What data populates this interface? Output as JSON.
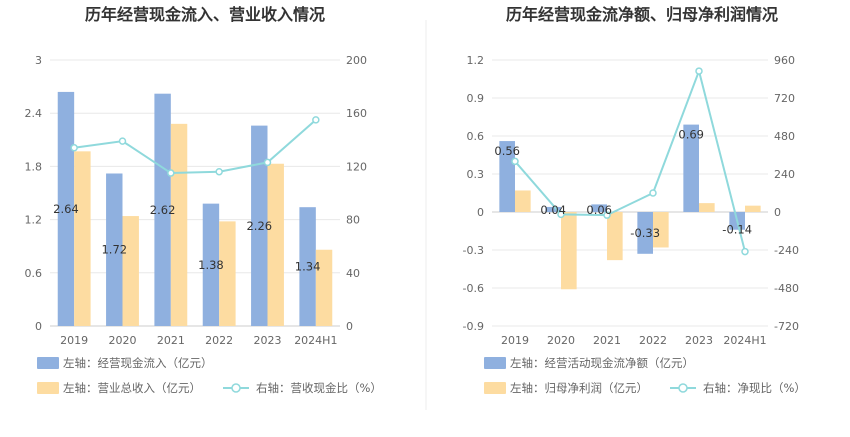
{
  "colors": {
    "bar_blue": "#8fb0df",
    "bar_orange": "#fddca1",
    "line_cyan": "#8fd9dc",
    "grid": "#e8e8e8",
    "axis": "#cccccc"
  },
  "chart_data": [
    {
      "type": "bar",
      "title": "历年经营现金流入、营业收入情况",
      "categories": [
        "2019",
        "2020",
        "2021",
        "2022",
        "2023",
        "2024H1"
      ],
      "left_axis": {
        "ylim": [
          0,
          3
        ],
        "ticks": [
          "0",
          "0.6",
          "1.2",
          "1.8",
          "2.4",
          "3"
        ]
      },
      "right_axis": {
        "ylim": [
          0,
          200
        ],
        "ticks": [
          "0",
          "40",
          "80",
          "120",
          "160",
          "200"
        ]
      },
      "series": [
        {
          "name": "左轴：经营现金流入（亿元）",
          "axis": "left",
          "kind": "bar",
          "values": [
            2.64,
            1.72,
            2.62,
            1.38,
            2.26,
            1.34
          ],
          "labels": [
            "2.64",
            "1.72",
            "2.62",
            "1.38",
            "2.26",
            "1.34"
          ]
        },
        {
          "name": "左轴：营业总收入（亿元）",
          "axis": "left",
          "kind": "bar",
          "values": [
            1.97,
            1.24,
            2.28,
            1.18,
            1.83,
            0.86
          ]
        },
        {
          "name": "右轴：营收现金比（%）",
          "axis": "right",
          "kind": "line",
          "values": [
            134,
            139,
            115,
            116,
            123,
            155
          ]
        }
      ]
    },
    {
      "type": "bar",
      "title": "历年经营现金流净额、归母净利润情况",
      "categories": [
        "2019",
        "2020",
        "2021",
        "2022",
        "2023",
        "2024H1"
      ],
      "left_axis": {
        "ylim": [
          -0.9,
          1.2
        ],
        "ticks": [
          "-0.9",
          "-0.6",
          "-0.3",
          "0",
          "0.3",
          "0.6",
          "0.9",
          "1.2"
        ]
      },
      "right_axis": {
        "ylim": [
          -720,
          960
        ],
        "ticks": [
          "-720",
          "-480",
          "-240",
          "0",
          "240",
          "480",
          "720",
          "960"
        ]
      },
      "series": [
        {
          "name": "左轴：经营活动现金流净额（亿元）",
          "axis": "left",
          "kind": "bar",
          "values": [
            0.56,
            0.04,
            0.06,
            -0.33,
            0.69,
            -0.14
          ],
          "labels": [
            "0.56",
            "0.04",
            "0.06",
            "-0.33",
            "0.69",
            "-0.14"
          ]
        },
        {
          "name": "左轴：归母净利润（亿元）",
          "axis": "left",
          "kind": "bar",
          "values": [
            0.17,
            -0.61,
            -0.38,
            -0.28,
            0.07,
            0.05
          ]
        },
        {
          "name": "右轴：净现比（%）",
          "axis": "right",
          "kind": "line",
          "values": [
            320,
            -15,
            -20,
            120,
            890,
            -250
          ]
        }
      ]
    }
  ]
}
